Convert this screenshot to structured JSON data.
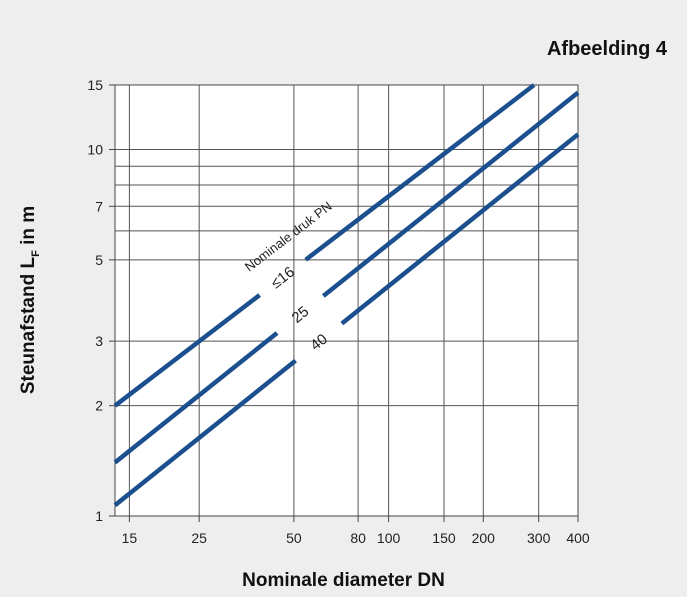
{
  "figure_label": "Afbeelding 4",
  "chart_data": {
    "type": "line",
    "xlabel": "Nominale diameter DN",
    "ylabel_main": "Steunafstand L",
    "ylabel_sub": "F",
    "ylabel_tail": " in m",
    "x_scale": "log",
    "y_scale": "log",
    "xlim": [
      13.5,
      400
    ],
    "ylim": [
      1,
      15
    ],
    "x_ticks": [
      15,
      25,
      50,
      80,
      100,
      150,
      200,
      300,
      400
    ],
    "y_ticks": [
      1,
      2,
      3,
      5,
      7,
      10,
      15
    ],
    "x_tick_labels": [
      "15",
      "25",
      "50",
      "80",
      "100",
      "150",
      "200",
      "300",
      "400"
    ],
    "y_tick_labels": [
      "1",
      "2",
      "3",
      "5",
      "7",
      "10",
      "15"
    ],
    "x_grid": [
      15,
      25,
      50,
      80,
      100,
      150,
      200,
      300
    ],
    "y_grid": [
      2,
      3,
      5,
      6,
      7,
      8,
      9,
      10
    ],
    "grid": true,
    "annotation": "Nominale druk PN",
    "series": [
      {
        "name": "≤16",
        "x": [
          13.5,
          290
        ],
        "y": [
          2.0,
          15.0
        ]
      },
      {
        "name": "25",
        "x": [
          13.5,
          400
        ],
        "y": [
          1.4,
          14.3
        ]
      },
      {
        "name": "40",
        "x": [
          13.5,
          400
        ],
        "y": [
          1.07,
          11.0
        ]
      }
    ],
    "line_color": "#1c4f8e"
  }
}
